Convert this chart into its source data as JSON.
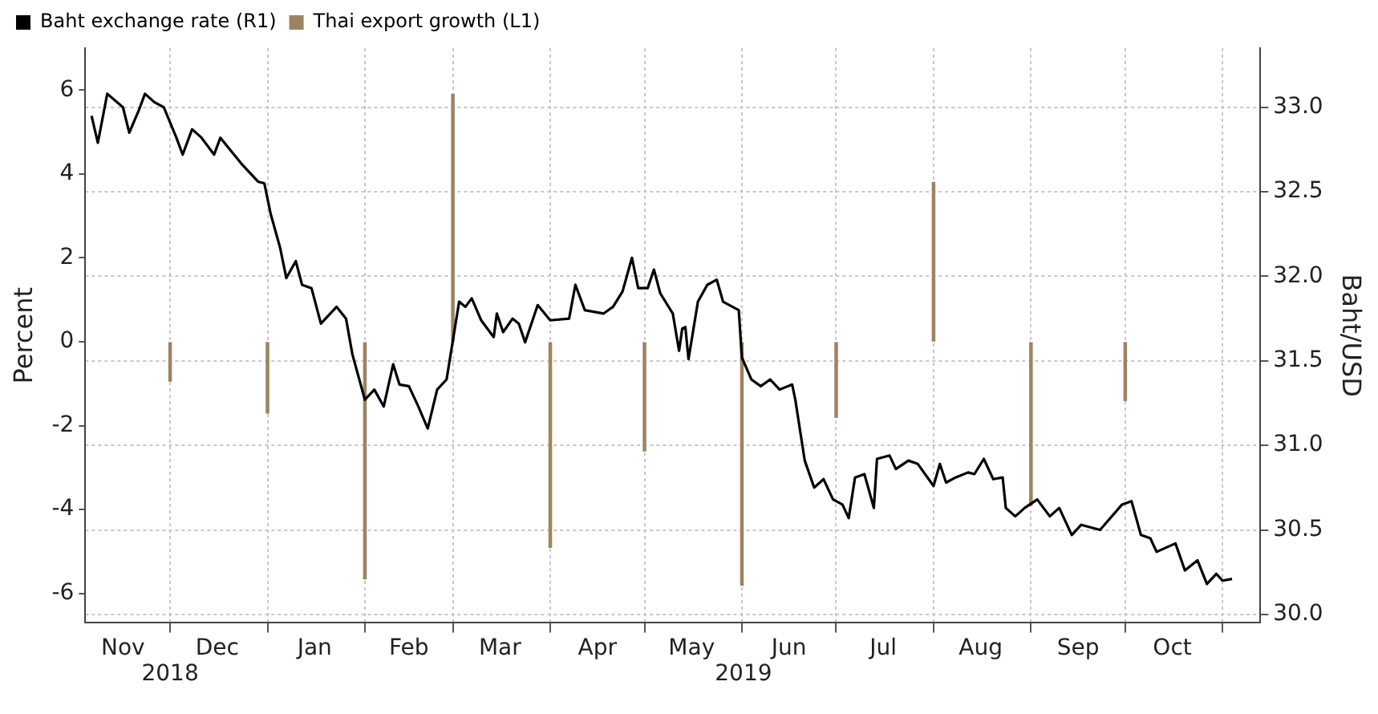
{
  "chart_data": {
    "type": "line",
    "ylabel": "Percent",
    "y2label": "Baht/USD",
    "legend": "top left",
    "grid": true,
    "xlim": [
      "2018-11-04",
      "2019-11-13"
    ],
    "xticks": [
      {
        "value": "2018-11-16",
        "label": "Nov"
      },
      {
        "value": "2018-12-01",
        "label": null
      },
      {
        "value": "2018-12-16",
        "label": "Dec"
      },
      {
        "value": "2019-01-01",
        "label": null
      },
      {
        "value": "2019-01-16",
        "label": "Jan"
      },
      {
        "value": "2019-02-01",
        "label": null
      },
      {
        "value": "2019-02-15",
        "label": "Feb"
      },
      {
        "value": "2019-03-01",
        "label": null
      },
      {
        "value": "2019-03-16",
        "label": "Mar"
      },
      {
        "value": "2019-04-01",
        "label": null
      },
      {
        "value": "2019-04-16",
        "label": "Apr"
      },
      {
        "value": "2019-05-01",
        "label": null
      },
      {
        "value": "2019-05-16",
        "label": "May"
      },
      {
        "value": "2019-06-01",
        "label": null
      },
      {
        "value": "2019-06-16",
        "label": "Jun"
      },
      {
        "value": "2019-07-01",
        "label": null
      },
      {
        "value": "2019-07-16",
        "label": "Jul"
      },
      {
        "value": "2019-08-01",
        "label": null
      },
      {
        "value": "2019-08-16",
        "label": "Aug"
      },
      {
        "value": "2019-09-01",
        "label": null
      },
      {
        "value": "2019-09-16",
        "label": "Sep"
      },
      {
        "value": "2019-10-01",
        "label": null
      },
      {
        "value": "2019-10-16",
        "label": "Oct"
      },
      {
        "value": "2019-11-01",
        "label": null
      }
    ],
    "ylim": [
      -6.7,
      7
    ],
    "yticks": [
      -6,
      -4,
      -2,
      0,
      2,
      4,
      6
    ],
    "y2lim": [
      29.95,
      33.35
    ],
    "y2ticks": [
      {
        "value": 30,
        "label": "30.0"
      },
      {
        "value": 30.5,
        "label": "30.5"
      },
      {
        "value": 31,
        "label": "31.0"
      },
      {
        "value": 31.5,
        "label": "31.5"
      },
      {
        "value": 32,
        "label": "32.0"
      },
      {
        "value": 32.5,
        "label": "32.5"
      },
      {
        "value": 33,
        "label": "33.0"
      }
    ],
    "annotations": [
      "2018",
      "2019"
    ],
    "series": [
      {
        "name": "Baht exchange rate (R1)",
        "axis": "y2",
        "color": "#000000",
        "x": [
          "2018-11-06",
          "2018-11-08",
          "2018-11-11",
          "2018-11-16",
          "2018-11-18",
          "2018-11-21",
          "2018-11-23",
          "2018-11-26",
          "2018-11-29",
          "2018-12-03",
          "2018-12-05",
          "2018-12-08",
          "2018-12-11",
          "2018-12-15",
          "2018-12-17",
          "2018-12-24",
          "2018-12-29",
          "2018-12-31",
          "2019-01-02",
          "2019-01-05",
          "2019-01-07",
          "2019-01-10",
          "2019-01-12",
          "2019-01-15",
          "2019-01-18",
          "2019-01-23",
          "2019-01-26",
          "2019-01-28",
          "2019-02-01",
          "2019-02-04",
          "2019-02-07",
          "2019-02-10",
          "2019-02-12",
          "2019-02-15",
          "2019-02-18",
          "2019-02-21",
          "2019-02-24",
          "2019-02-27",
          "2019-03-01",
          "2019-03-03",
          "2019-03-05",
          "2019-03-07",
          "2019-03-10",
          "2019-03-14",
          "2019-03-15",
          "2019-03-17",
          "2019-03-20",
          "2019-03-22",
          "2019-03-24",
          "2019-03-28",
          "2019-04-01",
          "2019-04-07",
          "2019-04-09",
          "2019-04-12",
          "2019-04-18",
          "2019-04-21",
          "2019-04-24",
          "2019-04-27",
          "2019-04-29",
          "2019-05-02",
          "2019-05-04",
          "2019-05-06",
          "2019-05-10",
          "2019-05-12",
          "2019-05-13",
          "2019-05-14",
          "2019-05-15",
          "2019-05-18",
          "2019-05-21",
          "2019-05-24",
          "2019-05-26",
          "2019-05-31",
          "2019-06-01",
          "2019-06-04",
          "2019-06-07",
          "2019-06-10",
          "2019-06-13",
          "2019-06-17",
          "2019-06-18",
          "2019-06-21",
          "2019-06-24",
          "2019-06-27",
          "2019-06-30",
          "2019-07-03",
          "2019-07-05",
          "2019-07-07",
          "2019-07-10",
          "2019-07-13",
          "2019-07-14",
          "2019-07-18",
          "2019-07-20",
          "2019-07-24",
          "2019-07-27",
          "2019-08-01",
          "2019-08-03",
          "2019-08-05",
          "2019-08-08",
          "2019-08-12",
          "2019-08-14",
          "2019-08-17",
          "2019-08-20",
          "2019-08-23",
          "2019-08-24",
          "2019-08-27",
          "2019-08-30",
          "2019-09-03",
          "2019-09-07",
          "2019-09-10",
          "2019-09-14",
          "2019-09-17",
          "2019-09-23",
          "2019-09-30",
          "2019-10-03",
          "2019-10-06",
          "2019-10-09",
          "2019-10-11",
          "2019-10-17",
          "2019-10-20",
          "2019-10-24",
          "2019-10-27",
          "2019-10-30",
          "2019-11-01",
          "2019-11-04"
        ],
        "values": [
          32.95,
          32.79,
          33.08,
          33.0,
          32.85,
          32.98,
          33.08,
          33.03,
          33.0,
          32.82,
          32.72,
          32.87,
          32.82,
          32.72,
          32.82,
          32.66,
          32.56,
          32.55,
          32.37,
          32.17,
          31.99,
          32.09,
          31.95,
          31.93,
          31.72,
          31.82,
          31.75,
          31.54,
          31.27,
          31.33,
          31.23,
          31.48,
          31.36,
          31.35,
          31.23,
          31.1,
          31.33,
          31.39,
          31.62,
          31.85,
          31.82,
          31.87,
          31.74,
          31.64,
          31.78,
          31.67,
          31.75,
          31.72,
          31.61,
          31.83,
          31.74,
          31.75,
          31.95,
          31.8,
          31.78,
          31.82,
          31.91,
          32.11,
          31.93,
          31.93,
          32.04,
          31.9,
          31.78,
          31.56,
          31.69,
          31.7,
          31.51,
          31.85,
          31.95,
          31.98,
          31.85,
          31.8,
          31.52,
          31.39,
          31.35,
          31.39,
          31.33,
          31.36,
          31.27,
          30.91,
          30.75,
          30.8,
          30.68,
          30.65,
          30.57,
          30.81,
          30.83,
          30.63,
          30.92,
          30.94,
          30.86,
          30.91,
          30.89,
          30.76,
          30.89,
          30.78,
          30.81,
          30.84,
          30.83,
          30.92,
          30.8,
          30.81,
          30.63,
          30.58,
          30.63,
          30.68,
          30.58,
          30.63,
          30.47,
          30.53,
          30.5,
          30.65,
          30.67,
          30.47,
          30.45,
          30.37,
          30.42,
          30.26,
          30.32,
          30.18,
          30.24,
          30.2,
          30.21
        ]
      },
      {
        "name": "Thai export growth (L1)",
        "type": "bar",
        "color": "#9c8462",
        "x": [
          "2018-12-01",
          "2019-01-01",
          "2019-02-01",
          "2019-03-01",
          "2019-04-01",
          "2019-05-01",
          "2019-06-01",
          "2019-07-01",
          "2019-08-01",
          "2019-09-01",
          "2019-10-01"
        ],
        "values": [
          -0.94,
          -1.7,
          -5.65,
          5.9,
          -4.9,
          -2.6,
          -5.8,
          -1.8,
          3.8,
          -3.9,
          -1.4
        ]
      }
    ]
  }
}
